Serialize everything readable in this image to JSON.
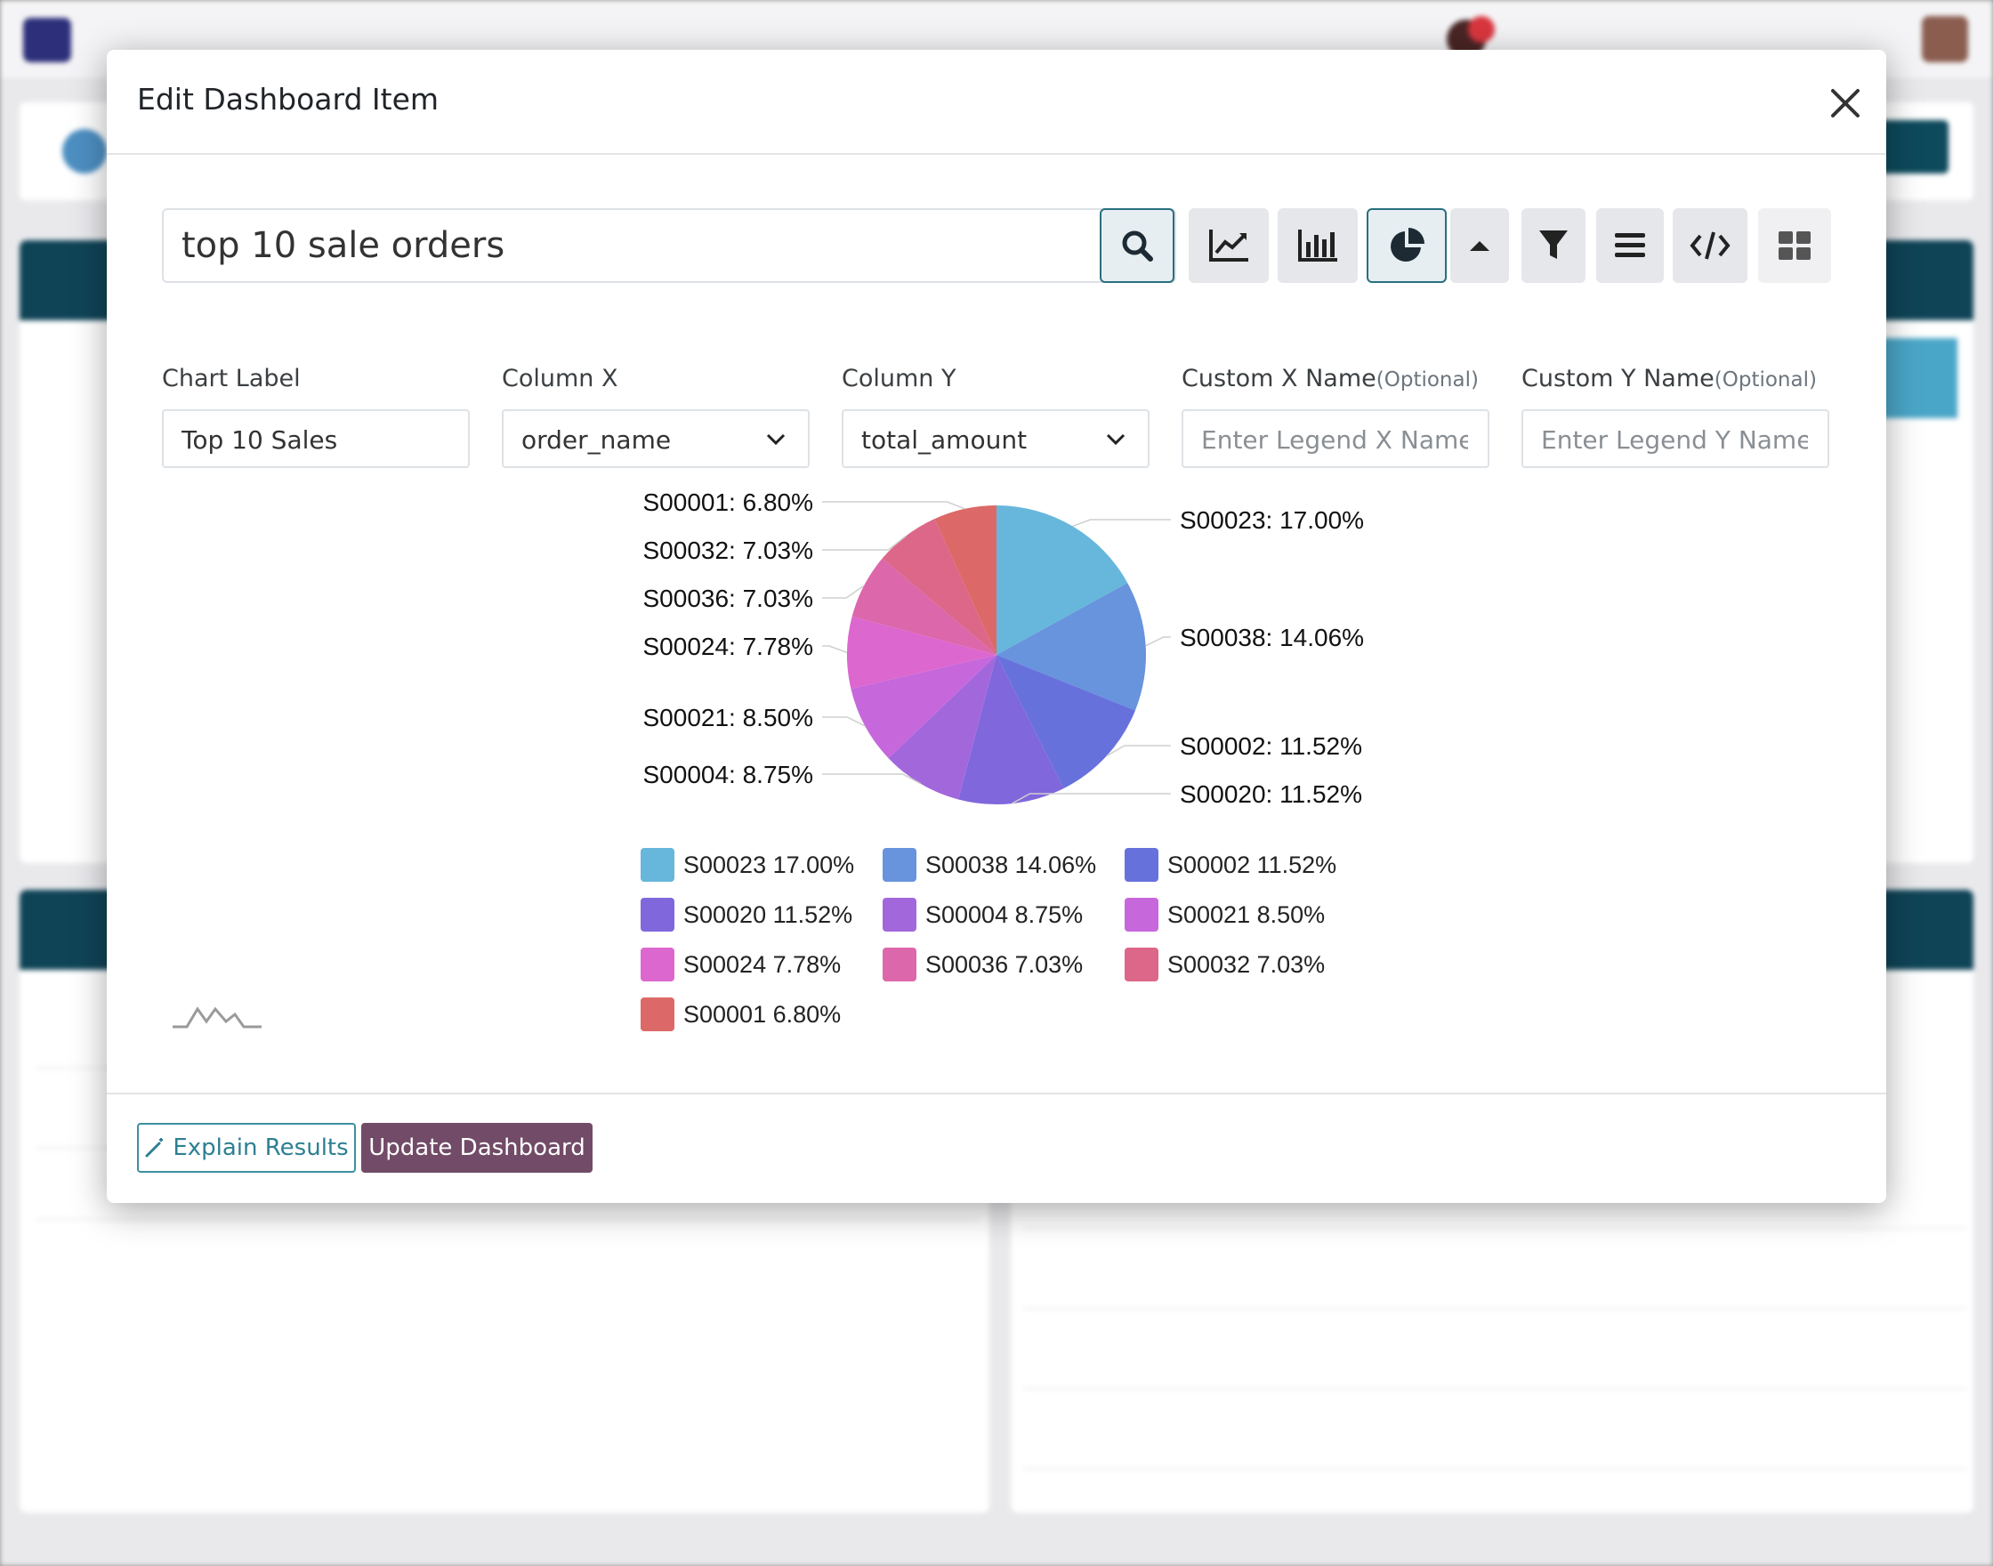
{
  "modal": {
    "title": "Edit Dashboard Item"
  },
  "search": {
    "query": "top 10 sale orders"
  },
  "chart_type_buttons": [
    {
      "name": "line-chart",
      "icon": "line-chart-icon",
      "active": false
    },
    {
      "name": "bar-chart",
      "icon": "bar-chart-icon",
      "active": false
    },
    {
      "name": "pie-chart",
      "icon": "pie-chart-icon",
      "active": true
    },
    {
      "name": "collapse",
      "icon": "caret-up-icon",
      "active": false
    },
    {
      "name": "filter",
      "icon": "filter-icon",
      "active": false
    },
    {
      "name": "list",
      "icon": "list-icon",
      "active": false
    },
    {
      "name": "code",
      "icon": "code-icon",
      "active": false
    },
    {
      "name": "grid",
      "icon": "grid-icon",
      "active": false
    }
  ],
  "fields": {
    "chart_label": {
      "label": "Chart Label",
      "value": "Top 10 Sales"
    },
    "column_x": {
      "label": "Column X",
      "value": "order_name"
    },
    "column_y": {
      "label": "Column Y",
      "value": "total_amount"
    },
    "custom_x": {
      "label": "Custom X Name",
      "hint": "(Optional)",
      "placeholder": "Enter Legend X Name"
    },
    "custom_y": {
      "label": "Custom Y Name",
      "hint": "(Optional)",
      "placeholder": "Enter Legend Y Name"
    }
  },
  "chart_data": {
    "type": "pie",
    "title": "",
    "slices": [
      {
        "label": "S00023",
        "value": 17.0,
        "pct": "17.00%",
        "color": "#67b7dc"
      },
      {
        "label": "S00038",
        "value": 14.06,
        "pct": "14.06%",
        "color": "#6794dc"
      },
      {
        "label": "S00002",
        "value": 11.52,
        "pct": "11.52%",
        "color": "#6771dc"
      },
      {
        "label": "S00020",
        "value": 11.52,
        "pct": "11.52%",
        "color": "#8067dc"
      },
      {
        "label": "S00004",
        "value": 8.75,
        "pct": "8.75%",
        "color": "#a367dc"
      },
      {
        "label": "S00021",
        "value": 8.5,
        "pct": "8.50%",
        "color": "#c767dc"
      },
      {
        "label": "S00024",
        "value": 7.78,
        "pct": "7.78%",
        "color": "#dc67ce"
      },
      {
        "label": "S00036",
        "value": 7.03,
        "pct": "7.03%",
        "color": "#dc67ab"
      },
      {
        "label": "S00032",
        "value": 7.03,
        "pct": "7.03%",
        "color": "#dc6788"
      },
      {
        "label": "S00001",
        "value": 6.8,
        "pct": "6.80%",
        "color": "#dc6967"
      }
    ],
    "legend_position": "bottom"
  },
  "footer": {
    "explain_label": "Explain Results",
    "update_label": "Update Dashboard"
  }
}
